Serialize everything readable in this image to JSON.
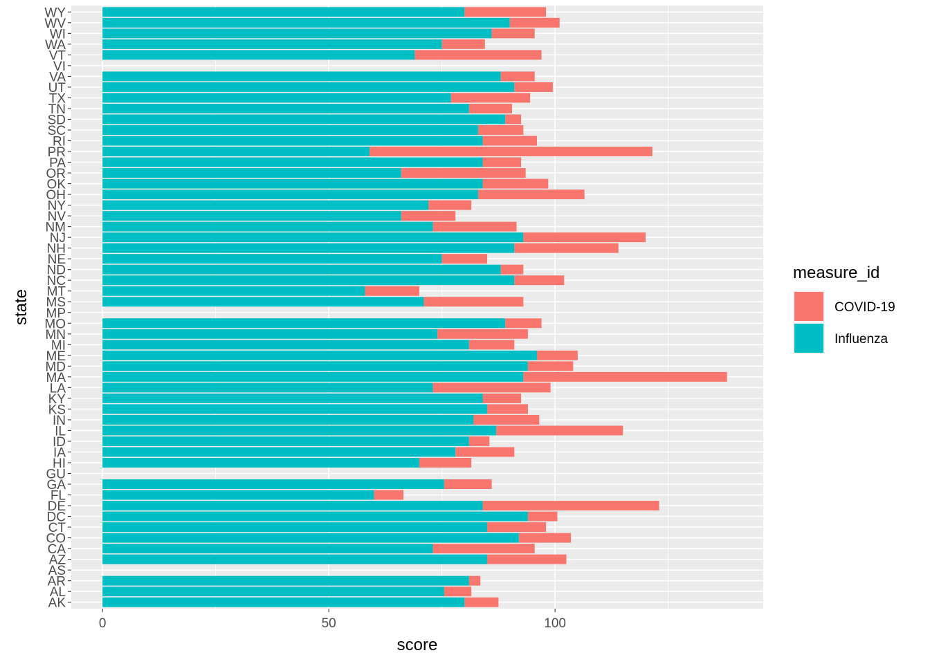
{
  "chart_data": {
    "type": "bar",
    "orientation": "horizontal",
    "stacked": true,
    "xlabel": "score",
    "ylabel": "state",
    "xlim": [
      -6.9,
      146
    ],
    "x_ticks": [
      0,
      50,
      100
    ],
    "grid": true,
    "legend": {
      "title": "measure_id",
      "placement": "right",
      "entries": [
        {
          "name": "COVID-19",
          "color": "#F8766D"
        },
        {
          "name": "Influenza",
          "color": "#00BFC4"
        }
      ]
    },
    "categories": [
      "AK",
      "AL",
      "AR",
      "AS",
      "AZ",
      "CA",
      "CO",
      "CT",
      "DC",
      "DE",
      "FL",
      "GA",
      "GU",
      "HI",
      "IA",
      "ID",
      "IL",
      "IN",
      "KS",
      "KY",
      "LA",
      "MA",
      "MD",
      "ME",
      "MI",
      "MN",
      "MO",
      "MP",
      "MS",
      "MT",
      "NC",
      "ND",
      "NE",
      "NH",
      "NJ",
      "NM",
      "NV",
      "NY",
      "OH",
      "OK",
      "OR",
      "PA",
      "PR",
      "RI",
      "SC",
      "SD",
      "TN",
      "TX",
      "UT",
      "VA",
      "VI",
      "VT",
      "WA",
      "WI",
      "WV",
      "WY"
    ],
    "series": [
      {
        "name": "Influenza",
        "color": "#00BFC4",
        "values": [
          80,
          75.5,
          81,
          0,
          85,
          73,
          92,
          85,
          94,
          84,
          60,
          75.5,
          0,
          70,
          78,
          81,
          87,
          82,
          85,
          84,
          73,
          93,
          94,
          96,
          81,
          74,
          89,
          0,
          71,
          58,
          91,
          88,
          75,
          91,
          93,
          73,
          66,
          72,
          83,
          84,
          66,
          84,
          59,
          84,
          83,
          89,
          81,
          77,
          91,
          88,
          0,
          69,
          75,
          86,
          90,
          80
        ]
      },
      {
        "name": "COVID-19",
        "color": "#F8766D",
        "values": [
          7.5,
          6,
          2.5,
          0,
          17.5,
          22.5,
          11.5,
          13,
          6.5,
          39,
          6.5,
          10.5,
          0,
          11.5,
          13,
          4.5,
          28,
          14.5,
          9,
          8.5,
          26,
          45,
          10,
          9,
          10,
          20,
          8,
          0,
          22,
          12,
          11,
          5,
          10,
          23,
          27,
          18.5,
          12,
          9.5,
          23.5,
          14.5,
          27.5,
          8.5,
          62.5,
          12,
          10,
          3.5,
          9.5,
          17.5,
          8.5,
          7.5,
          0,
          28,
          9.5,
          9.5,
          11,
          18
        ]
      }
    ]
  }
}
